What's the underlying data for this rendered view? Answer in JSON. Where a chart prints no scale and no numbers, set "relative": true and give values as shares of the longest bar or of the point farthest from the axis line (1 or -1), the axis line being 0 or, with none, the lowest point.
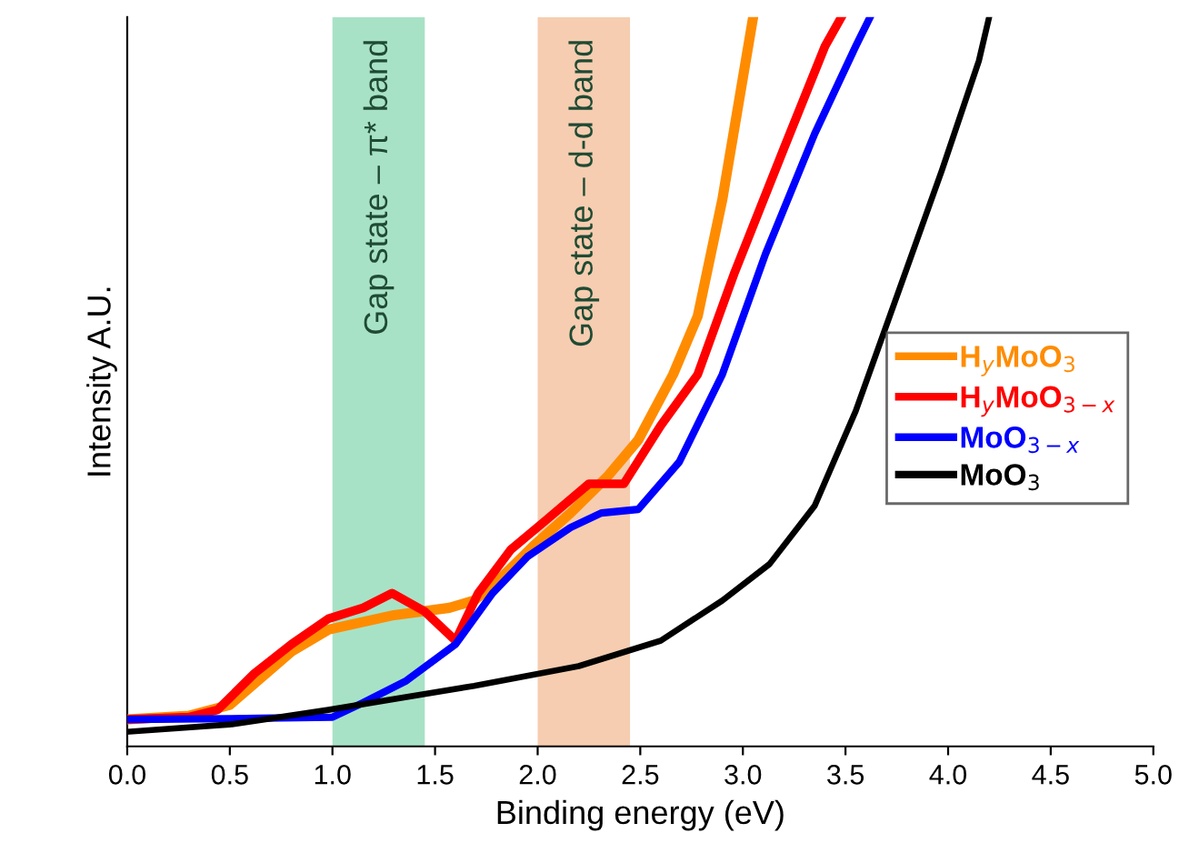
{
  "chart_data": {
    "type": "line",
    "relative": true,
    "xlabel": "Binding energy (eV)",
    "ylabel": "Intensity A.U.",
    "xlim": [
      0,
      5
    ],
    "xticks": [
      {
        "value": 0,
        "label": "0.0"
      },
      {
        "value": 0.5,
        "label": "0.5"
      },
      {
        "value": 1,
        "label": "1.0"
      },
      {
        "value": 1.5,
        "label": "1.5"
      },
      {
        "value": 2,
        "label": "2.0"
      },
      {
        "value": 2.5,
        "label": "2.5"
      },
      {
        "value": 3,
        "label": "3.0"
      },
      {
        "value": 3.5,
        "label": "3.5"
      },
      {
        "value": 4,
        "label": "4.0"
      },
      {
        "value": 4.5,
        "label": "4.5"
      },
      {
        "value": 5,
        "label": "5.0"
      }
    ],
    "tick_labels": "x",
    "grid": false,
    "legend": "right",
    "marker": "none",
    "line_style": "solid",
    "bands": [
      {
        "axis": "x",
        "from": 1.0,
        "to": 1.45,
        "label": "Gap state – π* band",
        "color": "#a8e2c6"
      },
      {
        "axis": "x",
        "from": 2.0,
        "to": 2.45,
        "label": "Gap state – d-d band",
        "color": "#f6cdb0"
      }
    ],
    "series": [
      {
        "name": "H$_{y}$MoO$_{3}$",
        "color": "#ff8c00",
        "x": [
          0,
          0.3,
          0.5,
          0.8,
          0.98,
          1.3,
          1.57,
          1.69,
          1.8,
          1.98,
          2.16,
          2.34,
          2.49,
          2.66,
          2.78,
          2.9,
          2.99,
          3.05
        ],
        "values": [
          0.037,
          0.042,
          0.057,
          0.13,
          0.16,
          0.18,
          0.19,
          0.2,
          0.225,
          0.275,
          0.32,
          0.37,
          0.42,
          0.51,
          0.59,
          0.75,
          0.9,
          1.0
        ]
      },
      {
        "name": "H$_{y}$MoO$_{3−x}$",
        "color": "#ff0000",
        "x": [
          0,
          0.3,
          0.44,
          0.62,
          0.8,
          0.98,
          1.15,
          1.29,
          1.45,
          1.6,
          1.71,
          1.87,
          2.04,
          2.25,
          2.42,
          2.6,
          2.78,
          2.96,
          3.2,
          3.4,
          3.48
        ],
        "values": [
          0.037,
          0.04,
          0.05,
          0.1,
          0.14,
          0.175,
          0.19,
          0.21,
          0.185,
          0.145,
          0.21,
          0.27,
          0.31,
          0.36,
          0.36,
          0.44,
          0.51,
          0.65,
          0.82,
          0.96,
          1.0
        ]
      },
      {
        "name": "MoO$_{3−x}$",
        "color": "#0000ff",
        "x": [
          0,
          0.5,
          1.0,
          1.15,
          1.36,
          1.6,
          1.78,
          1.95,
          2.16,
          2.31,
          2.49,
          2.69,
          2.9,
          3.11,
          3.35,
          3.55,
          3.62
        ],
        "values": [
          0.037,
          0.038,
          0.04,
          0.06,
          0.09,
          0.14,
          0.21,
          0.26,
          0.3,
          0.32,
          0.325,
          0.39,
          0.51,
          0.675,
          0.84,
          0.96,
          1.0
        ]
      },
      {
        "name": "MoO$_{3}$",
        "color": "#000000",
        "x": [
          0,
          0.5,
          0.98,
          1.69,
          2.2,
          2.6,
          2.9,
          3.13,
          3.35,
          3.55,
          3.76,
          3.97,
          4.15,
          4.2
        ],
        "values": [
          0.02,
          0.03,
          0.05,
          0.083,
          0.11,
          0.145,
          0.2,
          0.25,
          0.33,
          0.46,
          0.625,
          0.79,
          0.94,
          1.0
        ]
      }
    ]
  }
}
